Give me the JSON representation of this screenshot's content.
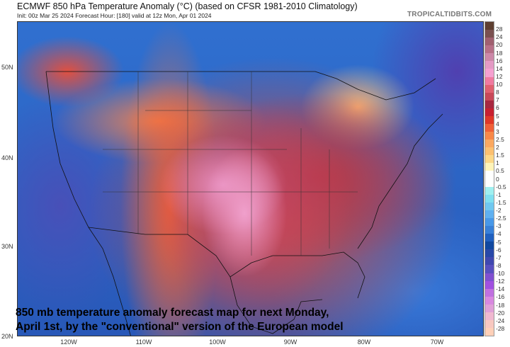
{
  "header": {
    "title": "ECMWF 850 hPa Temperature Anomaly (°C) (based on CFSR 1981-2010 Climatology)",
    "subtitle": "Init: 00z Mar 25 2024   Forecast Hour: [180]   valid at 12z Mon, Apr 01 2024",
    "brand": "TROPICALTIDBITS.COM"
  },
  "map": {
    "lat_labels": [
      "50N",
      "40N",
      "30N",
      "20N"
    ],
    "lon_labels": [
      "120W",
      "110W",
      "100W",
      "90W",
      "80W",
      "70W"
    ],
    "caption": "850 mb temperature anomaly forecast map for next Monday, April 1st, by the \"conventional\" version of the European model"
  },
  "colorbar": {
    "ticks": [
      "28",
      "24",
      "20",
      "18",
      "16",
      "14",
      "12",
      "10",
      "8",
      "7",
      "6",
      "5",
      "4",
      "3",
      "2.5",
      "2",
      "1.5",
      "1",
      "0.5",
      "0",
      "-0.5",
      "-1",
      "-1.5",
      "-2",
      "-2.5",
      "-3",
      "-4",
      "-5",
      "-6",
      "-7",
      "-8",
      "-10",
      "-12",
      "-14",
      "-16",
      "-18",
      "-20",
      "-24",
      "-28"
    ],
    "colors": [
      "#5e3f30",
      "#7a5050",
      "#a06070",
      "#b77088",
      "#cc88a8",
      "#e49ac4",
      "#f5a0d0",
      "#f07aa0",
      "#e06070",
      "#c84858",
      "#a82840",
      "#c82030",
      "#e03828",
      "#f06038",
      "#f88848",
      "#fba860",
      "#fcc070",
      "#fdd888",
      "#fff4b8",
      "#ffffff",
      "#ffffff",
      "#a0f0f0",
      "#80e0f0",
      "#70c8f0",
      "#60b0f0",
      "#4898e8",
      "#3880d8",
      "#2060c0",
      "#1048a0",
      "#2848a8",
      "#4048b0",
      "#5850c0",
      "#8050d0",
      "#a050e0",
      "#c070e0",
      "#d888e0",
      "#e0a0d8",
      "#f0b8d0",
      "#f8c8c0",
      "#ffd0b8"
    ]
  }
}
